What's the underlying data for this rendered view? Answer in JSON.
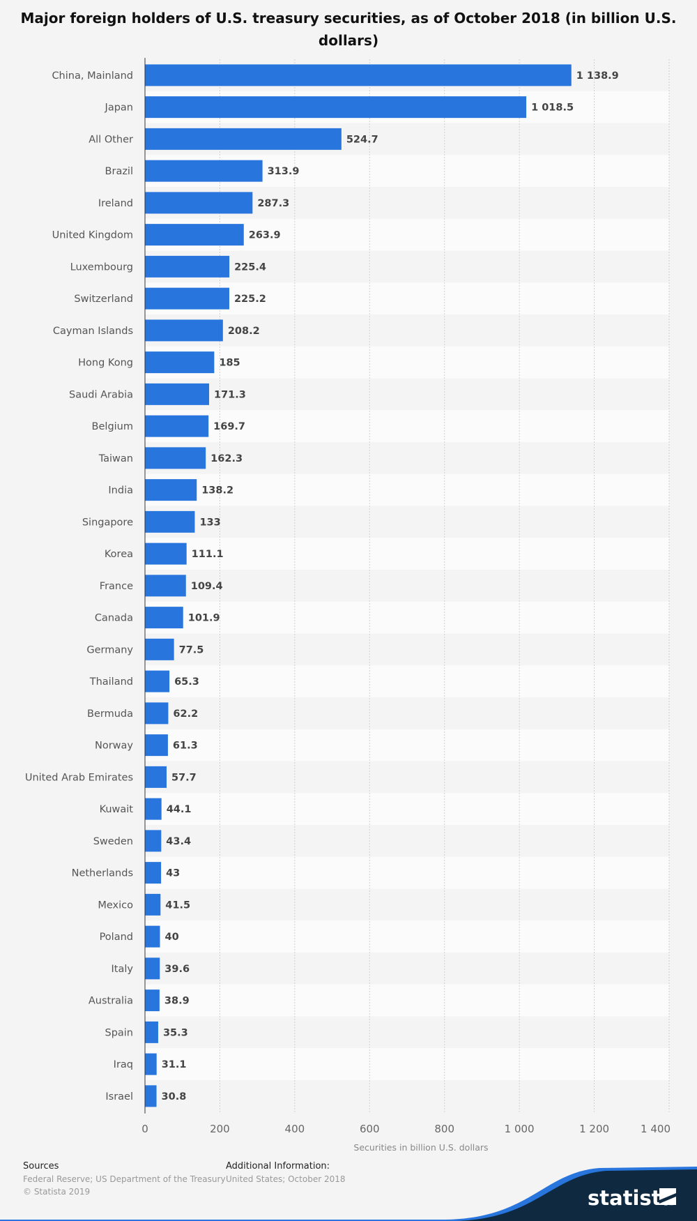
{
  "chart_data": {
    "type": "bar",
    "orientation": "horizontal",
    "title": "Major foreign holders of U.S. treasury securities, as of October 2018 (in billion U.S. dollars)",
    "xlabel": "Securities in billion U.S. dollars",
    "ylabel": "",
    "xlim": [
      0,
      1400
    ],
    "ticks": [
      0,
      200,
      400,
      600,
      800,
      1000,
      1200,
      1400
    ],
    "tick_labels": [
      "0",
      "200",
      "400",
      "600",
      "800",
      "1 000",
      "1 200",
      "1 400"
    ],
    "grid": true,
    "bar_color": "#2876dd",
    "categories": [
      "China, Mainland",
      "Japan",
      "All Other",
      "Brazil",
      "Ireland",
      "United Kingdom",
      "Luxembourg",
      "Switzerland",
      "Cayman Islands",
      "Hong Kong",
      "Saudi Arabia",
      "Belgium",
      "Taiwan",
      "India",
      "Singapore",
      "Korea",
      "France",
      "Canada",
      "Germany",
      "Thailand",
      "Bermuda",
      "Norway",
      "United Arab Emirates",
      "Kuwait",
      "Sweden",
      "Netherlands",
      "Mexico",
      "Poland",
      "Italy",
      "Australia",
      "Spain",
      "Iraq",
      "Israel"
    ],
    "values": [
      1138.9,
      1018.5,
      524.7,
      313.9,
      287.3,
      263.9,
      225.4,
      225.2,
      208.2,
      185,
      171.3,
      169.7,
      162.3,
      138.2,
      133,
      111.1,
      109.4,
      101.9,
      77.5,
      65.3,
      62.2,
      61.3,
      57.7,
      44.1,
      43.4,
      43,
      41.5,
      40,
      39.6,
      38.9,
      35.3,
      31.1,
      30.8
    ],
    "value_labels": [
      "1 138.9",
      "1 018.5",
      "524.7",
      "313.9",
      "287.3",
      "263.9",
      "225.4",
      "225.2",
      "208.2",
      "185",
      "171.3",
      "169.7",
      "162.3",
      "138.2",
      "133",
      "111.1",
      "109.4",
      "101.9",
      "77.5",
      "65.3",
      "62.2",
      "61.3",
      "57.7",
      "44.1",
      "43.4",
      "43",
      "41.5",
      "40",
      "39.6",
      "38.9",
      "35.3",
      "31.1",
      "30.8"
    ]
  },
  "footer": {
    "sources_label": "Sources",
    "sources_text": "Federal Reserve; US Department of the Treasury",
    "copyright": "© Statista 2019",
    "additional_label": "Additional Information:",
    "additional_text": "United States; October 2018",
    "logo_text": "statista"
  }
}
